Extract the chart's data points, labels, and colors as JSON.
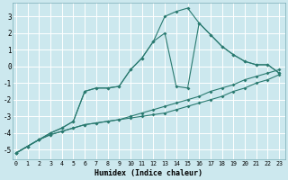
{
  "xlabel": "Humidex (Indice chaleur)",
  "x_ticks": [
    0,
    1,
    2,
    3,
    4,
    5,
    6,
    7,
    8,
    9,
    10,
    11,
    12,
    13,
    14,
    15,
    16,
    17,
    18,
    19,
    20,
    21,
    22,
    23
  ],
  "y_ticks": [
    -5,
    -4,
    -3,
    -2,
    -1,
    0,
    1,
    2,
    3
  ],
  "ylim": [
    -5.6,
    3.8
  ],
  "xlim": [
    -0.3,
    23.5
  ],
  "bg_color": "#cce8ee",
  "line_color": "#2a7a70",
  "grid_color": "#ffffff",
  "line1_y": [
    -5.2,
    -4.8,
    -4.4,
    -4.1,
    -3.9,
    -3.7,
    -3.5,
    -3.4,
    -3.3,
    -3.2,
    -3.1,
    -3.0,
    -2.9,
    -2.8,
    -2.6,
    -2.4,
    -2.2,
    -2.0,
    -1.8,
    -1.5,
    -1.3,
    -1.0,
    -0.8,
    -0.5
  ],
  "line2_y": [
    -5.2,
    -4.8,
    -4.4,
    -4.1,
    -3.9,
    -3.7,
    -3.5,
    -3.4,
    -3.3,
    -3.2,
    -3.0,
    -2.8,
    -2.6,
    -2.4,
    -2.2,
    -2.0,
    -1.8,
    -1.5,
    -1.3,
    -1.1,
    -0.8,
    -0.6,
    -0.4,
    -0.2
  ],
  "line3_y": [
    -5.2,
    -4.8,
    -4.4,
    -4.0,
    -3.7,
    -3.3,
    -1.5,
    -1.3,
    -1.3,
    -1.2,
    -0.2,
    0.5,
    1.5,
    2.0,
    -1.2,
    -1.3,
    2.6,
    1.9,
    1.2,
    0.7,
    0.3,
    0.1,
    0.1,
    -0.4
  ],
  "line4_y": [
    -5.2,
    -4.8,
    -4.4,
    -4.0,
    -3.7,
    -3.3,
    -1.5,
    -1.3,
    -1.3,
    -1.2,
    -0.2,
    0.5,
    1.5,
    3.0,
    3.3,
    3.5,
    2.6,
    1.9,
    1.2,
    0.7,
    0.3,
    0.1,
    0.1,
    -0.4
  ]
}
